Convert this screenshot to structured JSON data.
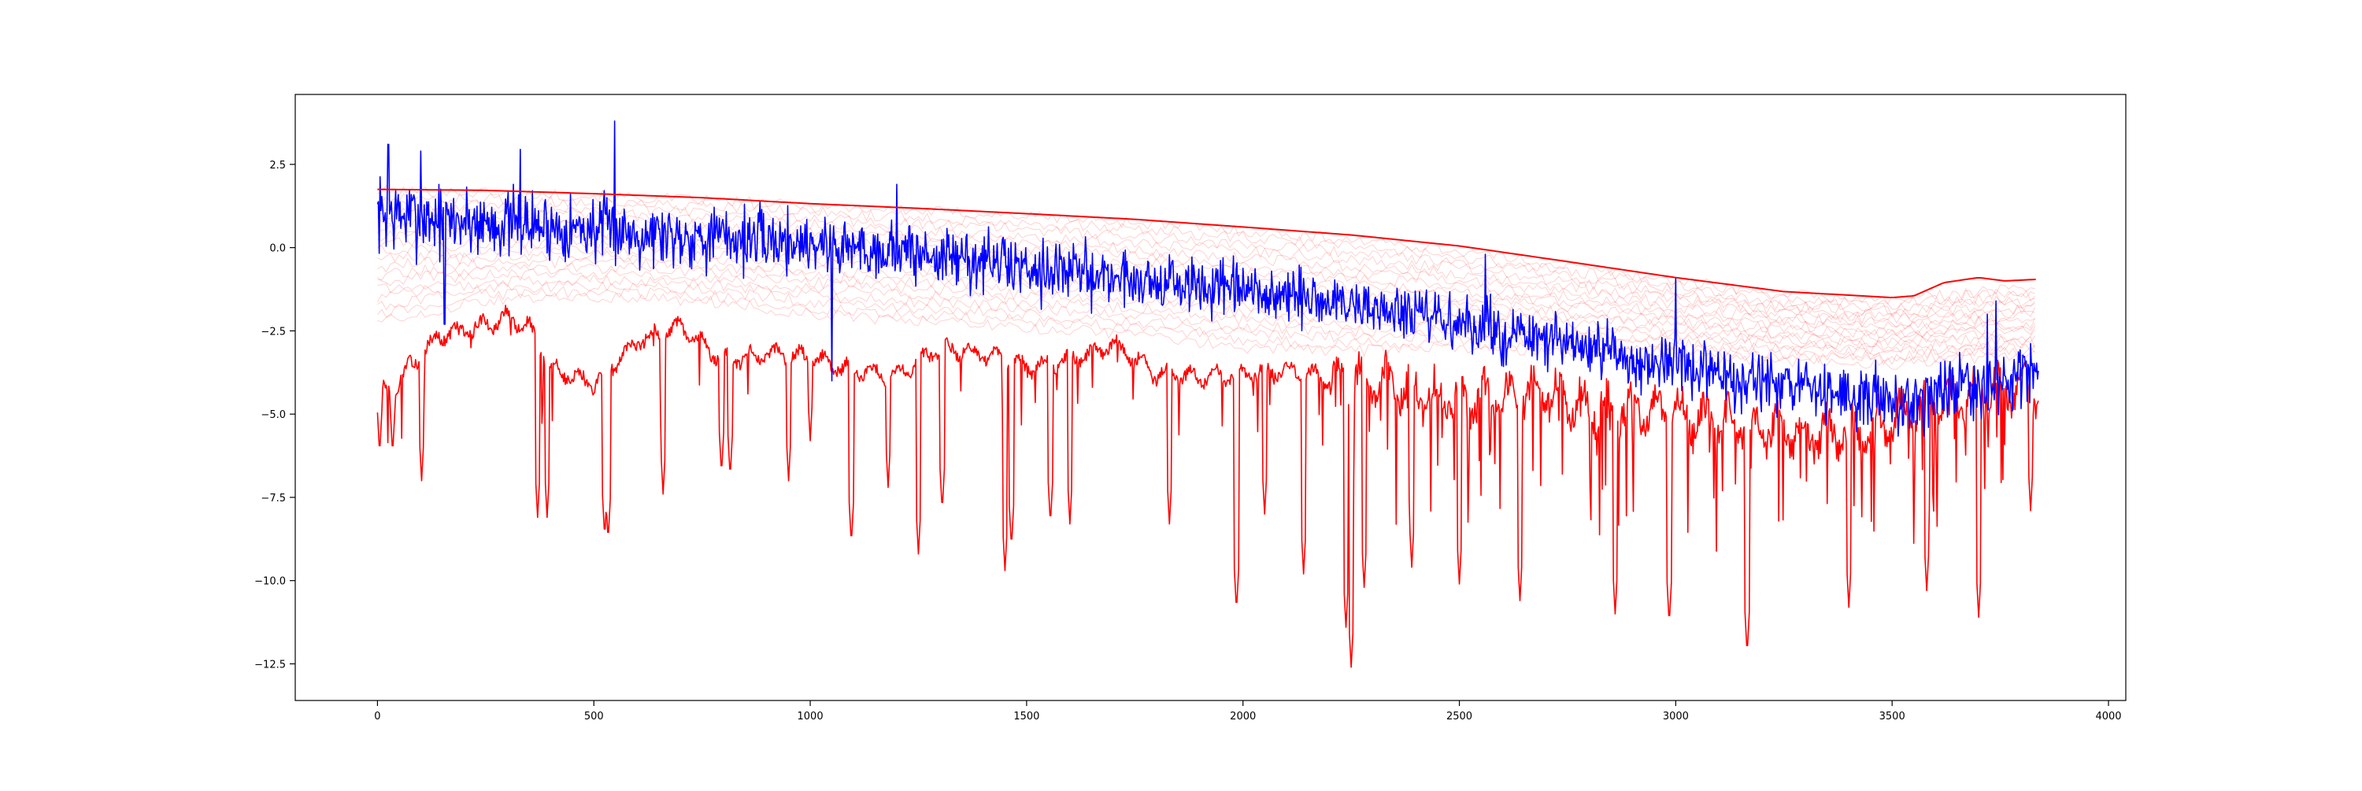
{
  "chart_data": {
    "type": "line",
    "title": "",
    "xlabel": "",
    "ylabel": "",
    "xlim": [
      -190,
      4040
    ],
    "ylim": [
      -13.6,
      4.6
    ],
    "grid": false,
    "legend": "none",
    "xticks": [
      0,
      500,
      1000,
      1500,
      2000,
      2500,
      3000,
      3500,
      4000
    ],
    "xtick_labels": [
      "0",
      "500",
      "1000",
      "1500",
      "2000",
      "2500",
      "3000",
      "3500",
      "4000"
    ],
    "yticks": [
      2.5,
      0.0,
      -2.5,
      -5.0,
      -7.5,
      -10.0,
      -12.5
    ],
    "ytick_labels": [
      "2.5",
      "0.0",
      "−2.5",
      "−5.0",
      "−7.5",
      "−10.0",
      "−12.5"
    ],
    "n_points": 3840,
    "series": [
      {
        "role": "upper-envelope",
        "color": "#ff0000",
        "width": 2,
        "x": [
          0,
          250,
          500,
          750,
          1000,
          1250,
          1500,
          1750,
          2000,
          2250,
          2500,
          2750,
          3000,
          3250,
          3500,
          3550,
          3620,
          3700,
          3760,
          3839
        ],
        "y": [
          1.75,
          1.72,
          1.62,
          1.5,
          1.32,
          1.18,
          1.02,
          0.85,
          0.62,
          0.38,
          0.05,
          -0.42,
          -0.9,
          -1.32,
          -1.5,
          -1.45,
          -1.05,
          -0.9,
          -1.0,
          -0.95
        ]
      },
      {
        "role": "faint-band",
        "color": "#ff0000",
        "opacity": 0.18,
        "count": 18,
        "x": [
          0,
          250,
          500,
          750,
          1000,
          1250,
          1500,
          1750,
          2000,
          2250,
          2500,
          2750,
          3000,
          3250,
          3500,
          3700,
          3839
        ],
        "y_top": [
          1.7,
          1.65,
          1.55,
          1.42,
          1.25,
          1.1,
          0.95,
          0.75,
          0.5,
          0.25,
          -0.1,
          -0.55,
          -1.0,
          -1.4,
          -1.6,
          -1.3,
          -1.2
        ],
        "y_bottom": [
          -2.2,
          -1.6,
          -1.5,
          -1.6,
          -2.0,
          -2.2,
          -2.4,
          -2.6,
          -3.0,
          -3.1,
          -3.0,
          -3.2,
          -3.3,
          -3.4,
          -3.5,
          -3.3,
          -3.2
        ]
      },
      {
        "role": "noisy-signal",
        "color": "#0000ff",
        "width": 1.6,
        "seed": 7,
        "x": [
          0,
          250,
          500,
          750,
          1000,
          1250,
          1500,
          1750,
          2000,
          2250,
          2500,
          2750,
          3000,
          3250,
          3500,
          3700,
          3839
        ],
        "y_mean": [
          1.0,
          0.75,
          0.55,
          0.35,
          0.15,
          -0.2,
          -0.55,
          -0.95,
          -1.35,
          -1.7,
          -2.3,
          -2.95,
          -3.6,
          -4.2,
          -4.6,
          -4.2,
          -3.8
        ],
        "spread": [
          1.0,
          0.9,
          0.85,
          0.85,
          0.8,
          0.8,
          0.8,
          0.75,
          0.75,
          0.75,
          0.75,
          0.75,
          0.75,
          0.75,
          0.8,
          0.85,
          0.85
        ],
        "spikes": [
          [
            548,
            3.8
          ],
          [
            25,
            3.1
          ],
          [
            100,
            2.9
          ],
          [
            155,
            -2.3
          ],
          [
            330,
            2.95
          ],
          [
            1050,
            -4.0
          ],
          [
            1200,
            1.9
          ],
          [
            2530,
            -3.2
          ],
          [
            2560,
            -0.2
          ],
          [
            3000,
            -0.9
          ],
          [
            3720,
            -2.0
          ],
          [
            3740,
            -1.6
          ]
        ]
      },
      {
        "role": "lower-oscillation",
        "color": "#ff0000",
        "width": 1.6,
        "seed": 13,
        "x": [
          0,
          50,
          100,
          150,
          200,
          300,
          350,
          400,
          500,
          600,
          700,
          800,
          900,
          1000,
          1100,
          1200,
          1300,
          1400,
          1500,
          1600,
          1700,
          1800,
          1900,
          2000,
          2100,
          2200,
          2300,
          2400,
          2500,
          2600,
          2700,
          2800,
          2900,
          3000,
          3100,
          3200,
          3300,
          3400,
          3500,
          3600,
          3700,
          3800,
          3839
        ],
        "y_base": [
          -4.5,
          -4.0,
          -3.2,
          -2.6,
          -2.5,
          -2.1,
          -2.4,
          -3.6,
          -4.1,
          -2.8,
          -2.4,
          -3.4,
          -3.2,
          -3.3,
          -3.7,
          -3.8,
          -3.0,
          -3.2,
          -3.6,
          -3.4,
          -2.9,
          -3.8,
          -3.9,
          -3.8,
          -3.7,
          -3.9,
          -3.9,
          -4.3,
          -4.6,
          -4.5,
          -4.3,
          -4.8,
          -4.8,
          -5.0,
          -5.2,
          -5.4,
          -5.6,
          -5.6,
          -5.2,
          -4.6,
          -4.3,
          -4.2,
          -4.3
        ],
        "dips": [
          [
            -6.2,
            5
          ],
          [
            -6.2,
            35
          ],
          [
            -7.0,
            102
          ],
          [
            -8.1,
            370
          ],
          [
            -8.1,
            392
          ],
          [
            -8.7,
            525
          ],
          [
            -8.8,
            533
          ],
          [
            -7.4,
            660
          ],
          [
            -6.8,
            795
          ],
          [
            -6.9,
            815
          ],
          [
            -7.0,
            950
          ],
          [
            -5.8,
            1000
          ],
          [
            -8.9,
            1095
          ],
          [
            -7.2,
            1180
          ],
          [
            -9.2,
            1250
          ],
          [
            -7.9,
            1305
          ],
          [
            -9.7,
            1450
          ],
          [
            -9.0,
            1465
          ],
          [
            -8.3,
            1555
          ],
          [
            -8.3,
            1600
          ],
          [
            -8.3,
            1830
          ],
          [
            -10.9,
            1985
          ],
          [
            -8.0,
            2050
          ],
          [
            -9.8,
            2140
          ],
          [
            -11.4,
            2238
          ],
          [
            -12.6,
            2250
          ],
          [
            -10.2,
            2280
          ],
          [
            -9.6,
            2390
          ],
          [
            -10.1,
            2500
          ],
          [
            -10.6,
            2640
          ],
          [
            -11.0,
            2860
          ],
          [
            -11.3,
            2985
          ],
          [
            -12.2,
            3165
          ],
          [
            -10.8,
            3400
          ],
          [
            -11.1,
            3700
          ],
          [
            -10.3,
            3580
          ],
          [
            -7.9,
            3820
          ]
        ]
      }
    ]
  }
}
